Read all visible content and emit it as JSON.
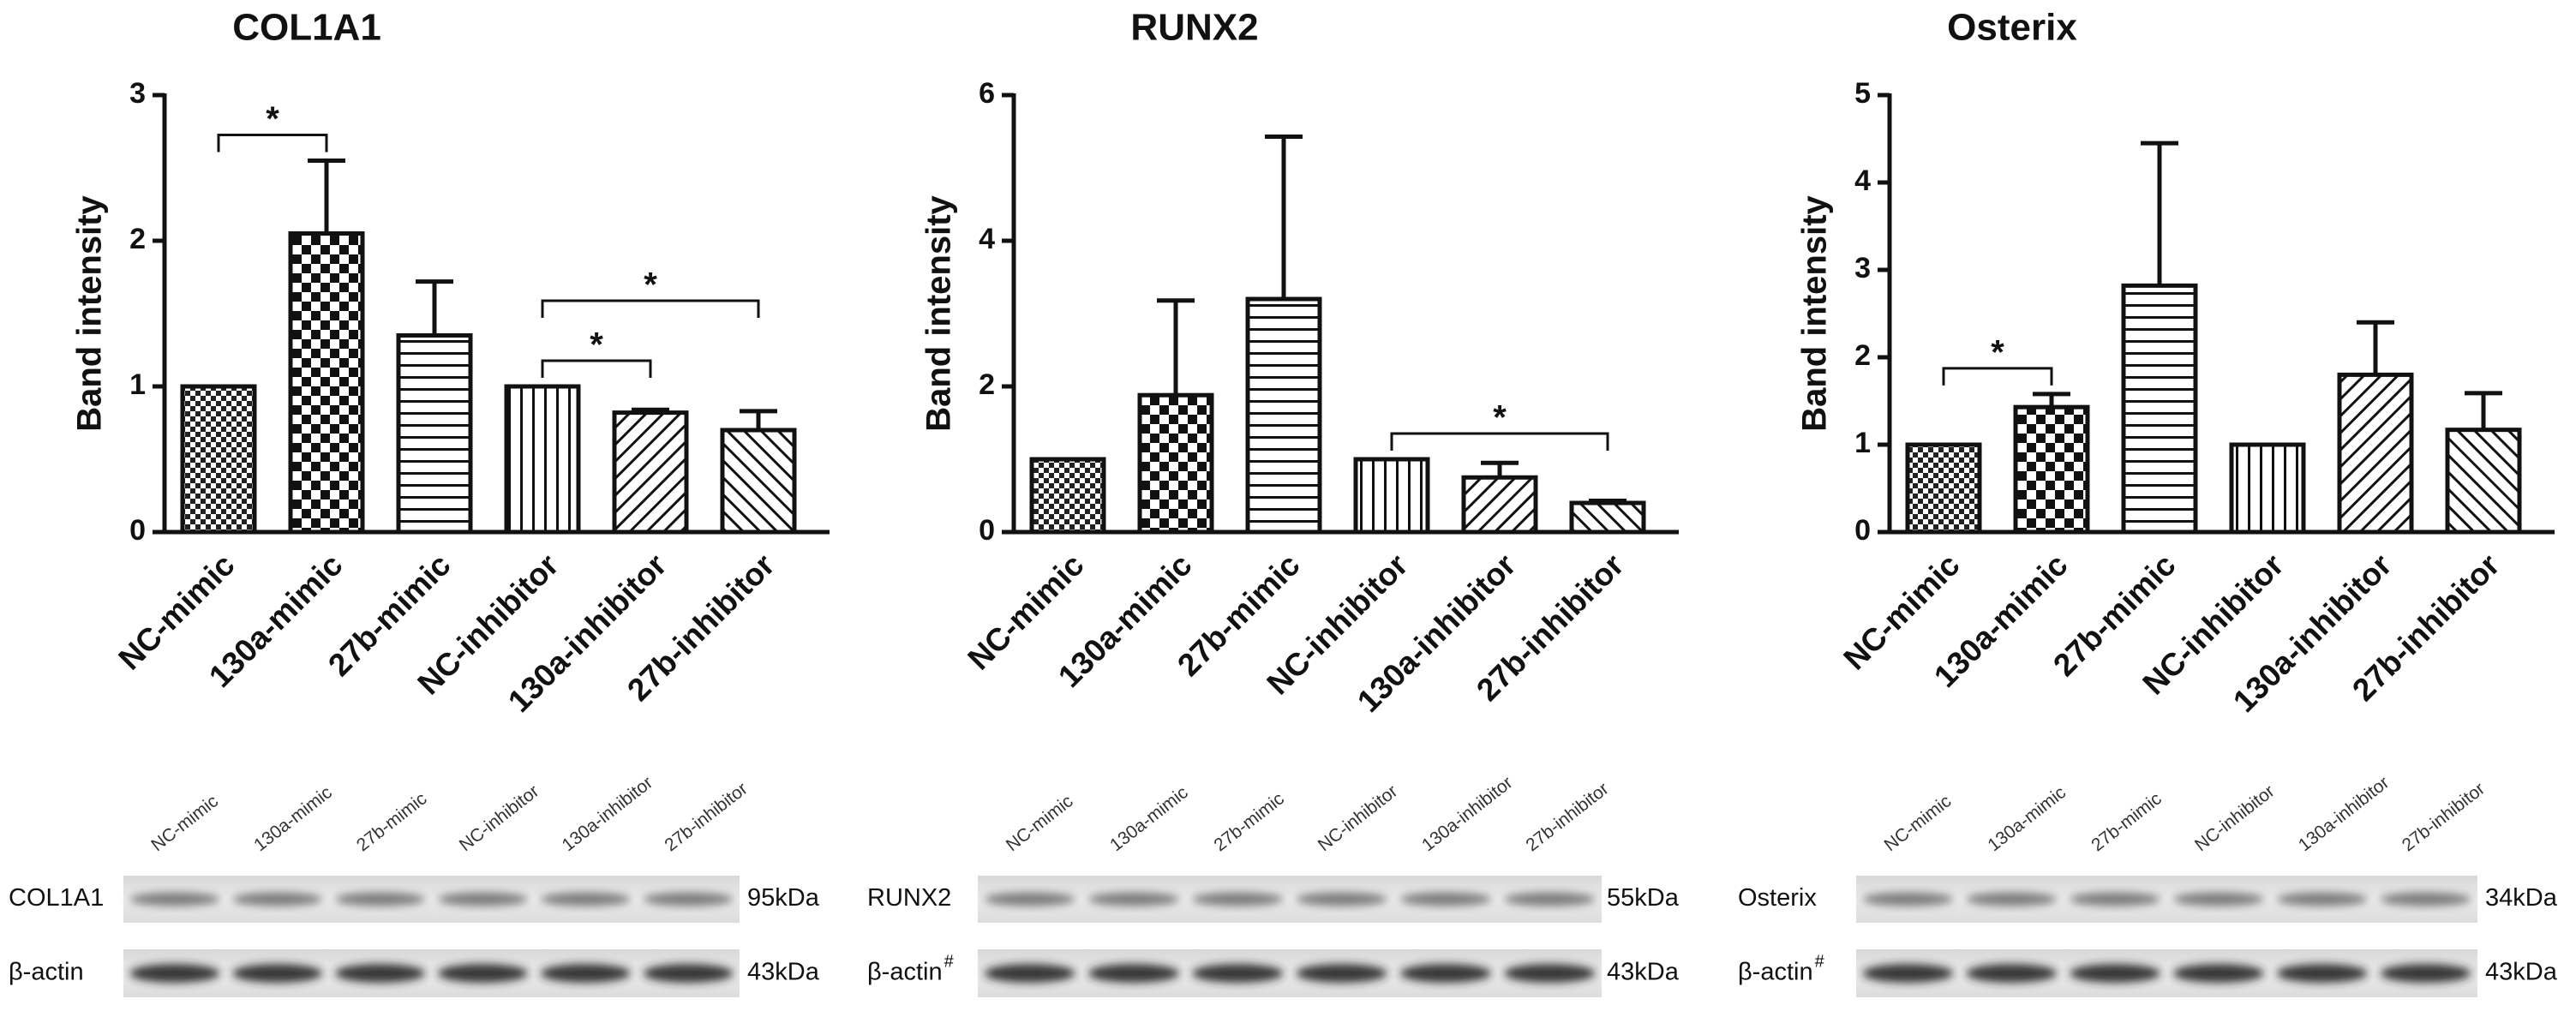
{
  "chart_data": [
    {
      "type": "bar",
      "title": "COL1A1",
      "ylabel": "Band intensity",
      "categories": [
        "NC-mimic",
        "130a-mimic",
        "27b-mimic",
        "NC-inhibitor",
        "130a-inhibitor",
        "27b-inhibitor"
      ],
      "values": [
        1,
        2.05,
        1.35,
        1,
        0.82,
        0.7
      ],
      "errors": [
        0,
        0.5,
        0.37,
        0,
        0.02,
        0.13
      ],
      "ylim": [
        0,
        3
      ],
      "yticks": [
        0,
        1,
        2,
        3
      ],
      "comparisons": [
        {
          "groups": [
            0,
            1
          ],
          "label": "*"
        },
        {
          "groups": [
            3,
            5
          ],
          "label": "*"
        },
        {
          "groups": [
            3,
            4
          ],
          "label": "*"
        }
      ],
      "blot": {
        "rows": [
          {
            "name": "COL1A1",
            "size": "95kDa"
          },
          {
            "name": "β-actin",
            "size": "43kDa"
          }
        ]
      }
    },
    {
      "type": "bar",
      "title": "RUNX2",
      "ylabel": "Band intensity",
      "categories": [
        "NC-mimic",
        "130a-mimic",
        "27b-mimic",
        "NC-inhibitor",
        "130a-inhibitor",
        "27b-inhibitor"
      ],
      "values": [
        1,
        1.88,
        3.2,
        1,
        0.75,
        0.4
      ],
      "errors": [
        0,
        1.3,
        2.23,
        0,
        0.2,
        0.03
      ],
      "ylim": [
        0,
        6
      ],
      "yticks": [
        0,
        2,
        4,
        6
      ],
      "comparisons": [
        {
          "groups": [
            3,
            5
          ],
          "label": "*"
        }
      ],
      "blot": {
        "rows": [
          {
            "name": "RUNX2",
            "size": "55kDa"
          },
          {
            "name": "β-actin",
            "superscript": "#",
            "size": "43kDa"
          }
        ]
      }
    },
    {
      "type": "bar",
      "title": "Osterix",
      "ylabel": "Band intensity",
      "categories": [
        "NC-mimic",
        "130a-mimic",
        "27b-mimic",
        "NC-inhibitor",
        "130a-inhibitor",
        "27b-inhibitor"
      ],
      "values": [
        1,
        1.43,
        2.82,
        1,
        1.8,
        1.17
      ],
      "errors": [
        0,
        0.15,
        1.63,
        0,
        0.6,
        0.42
      ],
      "ylim": [
        0,
        5
      ],
      "yticks": [
        0,
        1,
        2,
        3,
        4,
        5
      ],
      "comparisons": [
        {
          "groups": [
            0,
            1
          ],
          "label": "*"
        }
      ],
      "blot": {
        "rows": [
          {
            "name": "Osterix",
            "size": "34kDa"
          },
          {
            "name": "β-actin",
            "superscript": "#",
            "size": "43kDa"
          }
        ]
      }
    }
  ]
}
